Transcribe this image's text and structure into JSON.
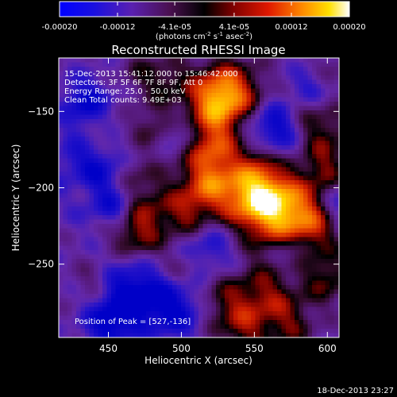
{
  "colorbar": {
    "tick_labels": [
      "-0.00020",
      "-0.00012",
      "-4.1e-05",
      "4.1e-05",
      "0.00012",
      "0.00020"
    ],
    "tick_values": [
      -0.0002,
      -0.00012,
      -4.1e-05,
      4.1e-05,
      0.00012,
      0.0002
    ],
    "range": [
      -0.0002,
      0.0002
    ],
    "units_text": "(photons cm",
    "units_exp1": "-2",
    "units_mid": " s",
    "units_exp2": "-1",
    "units_end": " asec",
    "units_exp3": "-2",
    "units_close": ")"
  },
  "chart_data": {
    "type": "heatmap",
    "title": "Reconstructed RHESSI Image",
    "xlabel": "Heliocentric X (arcsec)",
    "ylabel": "Heliocentric Y (arcsec)",
    "xlim": [
      416,
      608
    ],
    "ylim": [
      -298,
      -115
    ],
    "x_ticks": [
      450,
      500,
      550,
      600
    ],
    "x_tick_labels": [
      "450",
      "500",
      "550",
      "600"
    ],
    "y_ticks": [
      -150,
      -200,
      -250
    ],
    "y_tick_labels": [
      "−150",
      "−200",
      "−250"
    ],
    "colormap": [
      "#0000c8",
      "#4a0fa0",
      "#6a2a90",
      "#3a0c2a",
      "#000000",
      "#7a0000",
      "#d02000",
      "#ff7a00",
      "#ffd800",
      "#ffffff"
    ],
    "annotations": [
      "15-Dec-2013 15:41:12.000 to 15:46:42.000",
      "Detectors: 3F 5F 6F 7F 8F 9F, Att 0",
      "Energy Range: 25.0 - 50.0 keV",
      "Clean     Total counts: 9.49E+03"
    ],
    "peak_label": "Position of Peak = [527,-136]",
    "peak": [
      527,
      -136
    ]
  },
  "footer": {
    "timestamp": "18-Dec-2013 23:27"
  }
}
